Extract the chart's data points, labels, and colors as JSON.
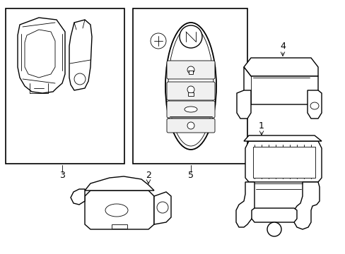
{
  "background_color": "#ffffff",
  "line_color": "#000000",
  "lw": 1.0,
  "tlw": 0.6
}
